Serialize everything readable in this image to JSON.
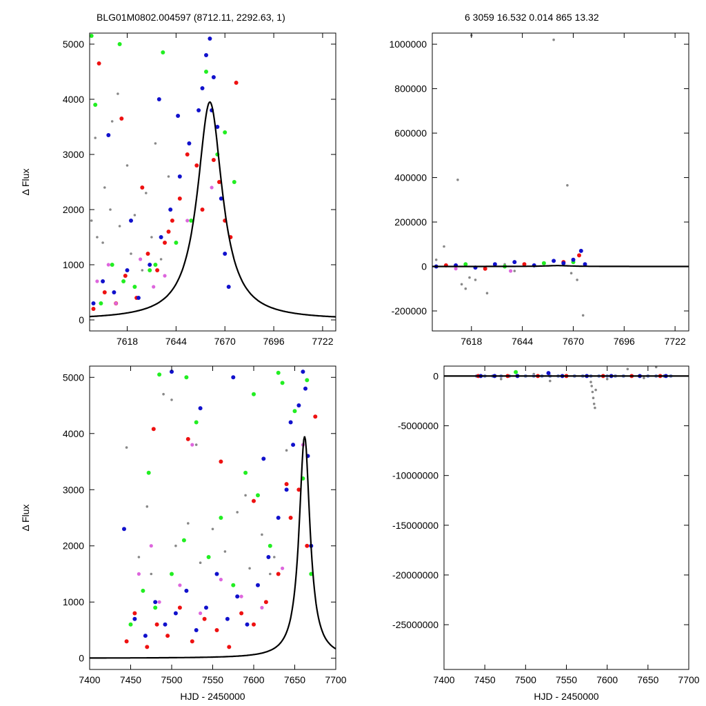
{
  "header": {
    "left": "BLG01M0802.004597 (8712.11, 2292.63,    1)",
    "right": "6   3059   16.532   0.014   865   13.32"
  },
  "colors": {
    "black": "#000000",
    "grey": "#888888",
    "red": "#ee1111",
    "green": "#22ee22",
    "blue": "#1111cc",
    "magenta": "#dd66dd",
    "lightblue": "#8899dd",
    "model": "#000000"
  },
  "chart_data": [
    {
      "id": "top-left",
      "type": "scatter",
      "title": "",
      "xlabel": "",
      "ylabel": "Δ Flux",
      "xlim": [
        7598,
        7729
      ],
      "ylim": [
        -200,
        5200
      ],
      "xticks": [
        7618,
        7644,
        7670,
        7696,
        7722
      ],
      "yticks": [
        0,
        1000,
        2000,
        3000,
        4000,
        5000
      ],
      "xtick_labels": [
        "7618",
        "7644",
        "7670",
        "7696",
        "7722"
      ],
      "ytick_labels": [
        "0",
        "1000",
        "2000",
        "3000",
        "4000",
        "5000"
      ],
      "model": {
        "t0": 7662,
        "amp": 3950,
        "tau": 8,
        "base": 0
      },
      "series": [
        {
          "color": "grey",
          "x": [
            7599,
            7602,
            7606,
            7610,
            7613,
            7618,
            7622,
            7628,
            7633,
            7640,
            7601,
            7605,
            7609,
            7614,
            7620,
            7626,
            7631,
            7636
          ],
          "y": [
            1800,
            1500,
            2400,
            3600,
            4100,
            2800,
            1900,
            2300,
            3200,
            2600,
            3300,
            1400,
            2000,
            1700,
            1200,
            900,
            1500,
            1100
          ]
        },
        {
          "color": "red",
          "x": [
            7600,
            7606,
            7612,
            7617,
            7623,
            7629,
            7634,
            7638,
            7642,
            7646,
            7650,
            7655,
            7658,
            7664,
            7667,
            7670,
            7673,
            7676,
            7603,
            7615,
            7626,
            7640
          ],
          "y": [
            200,
            500,
            300,
            800,
            400,
            1200,
            900,
            1400,
            1800,
            2200,
            3000,
            2800,
            2000,
            2900,
            2500,
            1800,
            1500,
            4300,
            4650,
            3650,
            2400,
            1600
          ]
        },
        {
          "color": "green",
          "x": [
            7599,
            7604,
            7610,
            7616,
            7622,
            7630,
            7637,
            7644,
            7652,
            7660,
            7666,
            7670,
            7675,
            7601,
            7614,
            7633
          ],
          "y": [
            5150,
            300,
            1000,
            700,
            600,
            900,
            4850,
            1400,
            1800,
            4500,
            3000,
            3400,
            2500,
            3900,
            5000,
            1000
          ]
        },
        {
          "color": "blue",
          "x": [
            7600,
            7605,
            7611,
            7618,
            7624,
            7630,
            7636,
            7641,
            7646,
            7651,
            7656,
            7660,
            7662,
            7664,
            7666,
            7668,
            7670,
            7672,
            7608,
            7620,
            7635,
            7645,
            7658,
            7663
          ],
          "y": [
            300,
            700,
            500,
            900,
            400,
            1000,
            1500,
            2000,
            2600,
            3200,
            3800,
            4800,
            5100,
            4400,
            3500,
            2200,
            1200,
            600,
            3350,
            1800,
            4000,
            3700,
            4200,
            3800
          ]
        },
        {
          "color": "magenta",
          "x": [
            7602,
            7612,
            7625,
            7638,
            7650,
            7663,
            7608,
            7632
          ],
          "y": [
            700,
            300,
            1100,
            800,
            1800,
            2400,
            1000,
            600
          ]
        }
      ]
    },
    {
      "id": "top-right",
      "type": "scatter",
      "title": "",
      "xlabel": "",
      "ylabel": "",
      "xlim": [
        7598,
        7729
      ],
      "ylim": [
        -290000,
        1050000
      ],
      "xticks": [
        7618,
        7644,
        7670,
        7696,
        7722
      ],
      "yticks": [
        -200000,
        0,
        200000,
        400000,
        600000,
        800000,
        1000000
      ],
      "xtick_labels": [
        "7618",
        "7644",
        "7670",
        "7696",
        "7722"
      ],
      "ytick_labels": [
        "-200000",
        "0",
        "200000",
        "400000",
        "600000",
        "800000",
        "1000000"
      ],
      "model": {
        "t0": 7662,
        "amp": 3950,
        "tau": 8,
        "base": 0
      },
      "series": [
        {
          "color": "grey",
          "x": [
            7611,
            7618,
            7620,
            7626,
            7660,
            7667,
            7669,
            7675,
            7604,
            7613,
            7615,
            7617,
            7640,
            7672,
            7600,
            7635
          ],
          "y": [
            390000,
            1040000,
            -60000,
            -120000,
            1020000,
            365000,
            -30000,
            -220000,
            90000,
            -80000,
            -100000,
            -50000,
            -20000,
            -60000,
            30000,
            10000
          ]
        },
        {
          "color": "red",
          "x": [
            7605,
            7625,
            7645,
            7665,
            7673
          ],
          "y": [
            5000,
            -10000,
            10000,
            20000,
            50000
          ]
        },
        {
          "color": "green",
          "x": [
            7615,
            7635,
            7655,
            7670
          ],
          "y": [
            10000,
            0,
            15000,
            20000
          ]
        },
        {
          "color": "blue",
          "x": [
            7600,
            7610,
            7620,
            7630,
            7640,
            7650,
            7660,
            7665,
            7670,
            7674,
            7676
          ],
          "y": [
            0,
            5000,
            -5000,
            10000,
            20000,
            5000,
            25000,
            15000,
            30000,
            70000,
            10000
          ]
        },
        {
          "color": "magenta",
          "x": [
            7610,
            7638
          ],
          "y": [
            -10000,
            -20000
          ]
        }
      ]
    },
    {
      "id": "bottom-left",
      "type": "scatter",
      "title": "",
      "xlabel": "HJD - 2450000",
      "ylabel": "Δ Flux",
      "xlim": [
        7400,
        7700
      ],
      "ylim": [
        -200,
        5200
      ],
      "xticks": [
        7400,
        7450,
        7500,
        7550,
        7600,
        7650,
        7700
      ],
      "yticks": [
        0,
        1000,
        2000,
        3000,
        4000,
        5000
      ],
      "xtick_labels": [
        "7400",
        "7450",
        "7500",
        "7550",
        "7600",
        "7650",
        "7700"
      ],
      "ytick_labels": [
        "0",
        "1000",
        "2000",
        "3000",
        "4000",
        "5000"
      ],
      "model": {
        "t0": 7662,
        "amp": 3950,
        "tau": 8,
        "base": 0
      },
      "series": [
        {
          "color": "grey",
          "x": [
            7445,
            7460,
            7475,
            7490,
            7505,
            7520,
            7535,
            7550,
            7565,
            7580,
            7595,
            7610,
            7625,
            7640,
            7470,
            7500,
            7530,
            7560,
            7590,
            7620
          ],
          "y": [
            3750,
            1800,
            1500,
            4700,
            2000,
            2400,
            1700,
            2300,
            1900,
            2600,
            1600,
            2200,
            1800,
            3700,
            2700,
            4600,
            3800,
            2500,
            2900,
            1500
          ]
        },
        {
          "color": "red",
          "x": [
            7445,
            7455,
            7470,
            7482,
            7495,
            7510,
            7525,
            7540,
            7555,
            7570,
            7585,
            7600,
            7615,
            7630,
            7645,
            7655,
            7665,
            7675,
            7478,
            7520,
            7560,
            7600,
            7640
          ],
          "y": [
            300,
            800,
            200,
            600,
            400,
            900,
            300,
            700,
            500,
            200,
            800,
            600,
            1000,
            1500,
            2500,
            3000,
            2000,
            4300,
            4080,
            3900,
            3500,
            2800,
            3100
          ]
        },
        {
          "color": "green",
          "x": [
            7450,
            7465,
            7480,
            7500,
            7515,
            7530,
            7545,
            7560,
            7575,
            7590,
            7605,
            7620,
            7635,
            7650,
            7660,
            7670,
            7472,
            7485,
            7518,
            7600,
            7630,
            7665
          ],
          "y": [
            600,
            1200,
            900,
            1500,
            2100,
            4200,
            1800,
            2500,
            1300,
            3300,
            2900,
            2000,
            4900,
            4400,
            3200,
            1500,
            3300,
            5050,
            5000,
            4700,
            5080,
            4950
          ]
        },
        {
          "color": "blue",
          "x": [
            7442,
            7455,
            7468,
            7480,
            7492,
            7505,
            7518,
            7530,
            7542,
            7555,
            7568,
            7580,
            7592,
            7605,
            7618,
            7630,
            7640,
            7648,
            7655,
            7660,
            7663,
            7666,
            7670,
            7500,
            7535,
            7575,
            7612,
            7645
          ],
          "y": [
            2300,
            700,
            400,
            1000,
            600,
            800,
            1200,
            500,
            900,
            1500,
            700,
            1100,
            600,
            1300,
            1800,
            2500,
            3000,
            3800,
            4500,
            5100,
            4800,
            3600,
            2000,
            5100,
            4450,
            5000,
            3550,
            4200
          ]
        },
        {
          "color": "magenta",
          "x": [
            7460,
            7485,
            7510,
            7535,
            7560,
            7585,
            7610,
            7635,
            7660,
            7475,
            7525
          ],
          "y": [
            1500,
            1000,
            1300,
            800,
            1400,
            1100,
            900,
            1600,
            3800,
            2000,
            3800
          ]
        }
      ]
    },
    {
      "id": "bottom-right",
      "type": "scatter",
      "title": "",
      "xlabel": "HJD - 2450000",
      "ylabel": "",
      "xlim": [
        7400,
        7700
      ],
      "ylim": [
        -29500000,
        1000000
      ],
      "xticks": [
        7400,
        7450,
        7500,
        7550,
        7600,
        7650,
        7700
      ],
      "yticks": [
        -25000000,
        -20000000,
        -15000000,
        -10000000,
        -5000000,
        0
      ],
      "xtick_labels": [
        "7400",
        "7450",
        "7500",
        "7550",
        "7600",
        "7650",
        "7700"
      ],
      "ytick_labels": [
        "-25000000",
        "-20000000",
        "-15000000",
        "-10000000",
        "-5000000",
        "0"
      ],
      "model": {
        "t0": 7662,
        "amp": 3950,
        "tau": 8,
        "base": 0
      },
      "series": [
        {
          "color": "grey",
          "x": [
            7580,
            7581,
            7582,
            7583,
            7584,
            7585,
            7586,
            7530,
            7600,
            7625,
            7660,
            7645,
            7470,
            7510
          ],
          "y": [
            -600000,
            -1000000,
            -1600000,
            -2200000,
            -2800000,
            -3200000,
            -1400000,
            -500000,
            -300000,
            700000,
            900000,
            -200000,
            -300000,
            200000
          ]
        },
        {
          "color": "lightblue",
          "x": [
            7440,
            7450,
            7460,
            7470,
            7480,
            7490,
            7500,
            7510,
            7520,
            7530,
            7540,
            7550,
            7560,
            7570,
            7580,
            7590,
            7600,
            7610,
            7620,
            7630,
            7640,
            7650,
            7660,
            7670,
            7678
          ],
          "y": [
            0,
            0,
            0,
            0,
            0,
            0,
            0,
            0,
            0,
            0,
            0,
            0,
            0,
            0,
            0,
            0,
            0,
            0,
            0,
            0,
            0,
            0,
            0,
            0,
            0
          ]
        },
        {
          "color": "red",
          "x": [
            7442,
            7478,
            7515,
            7550,
            7595,
            7630,
            7665
          ],
          "y": [
            0,
            0,
            0,
            0,
            0,
            0,
            0
          ]
        },
        {
          "color": "green",
          "x": [
            7488
          ],
          "y": [
            400000
          ]
        },
        {
          "color": "blue",
          "x": [
            7445,
            7462,
            7490,
            7528,
            7545,
            7575,
            7605,
            7640,
            7672
          ],
          "y": [
            0,
            0,
            0,
            300000,
            0,
            0,
            0,
            0,
            0
          ]
        }
      ]
    }
  ]
}
